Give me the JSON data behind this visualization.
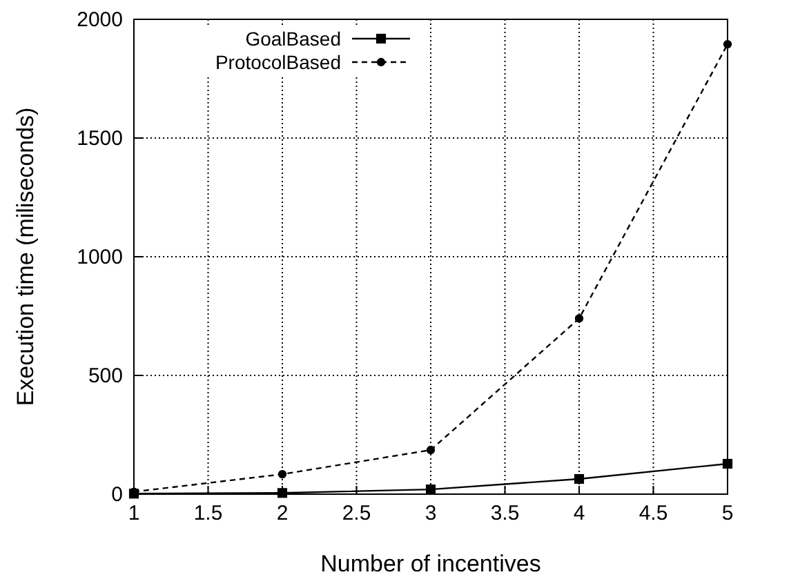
{
  "chart_data": {
    "type": "line",
    "xlabel": "Number of incentives",
    "ylabel": "Execution time (miliseconds)",
    "x": [
      1,
      2,
      3,
      4,
      5
    ],
    "series": [
      {
        "name": "GoalBased",
        "color": "#000000",
        "values": [
          2,
          5,
          20,
          64,
          128
        ],
        "marker": "square",
        "line_style": "solid"
      },
      {
        "name": "ProtocolBased",
        "color": "#000000",
        "values": [
          10,
          84,
          186,
          740,
          1895
        ],
        "marker": "circle",
        "line_style": "dashed"
      }
    ],
    "xlim": [
      1,
      5
    ],
    "xticks": [
      1,
      1.5,
      2,
      2.5,
      3,
      3.5,
      4,
      4.5,
      5
    ],
    "ylim": [
      0,
      2000
    ],
    "yticks": [
      0,
      500,
      1000,
      1500,
      2000
    ],
    "grid": true,
    "legend": "top left"
  }
}
